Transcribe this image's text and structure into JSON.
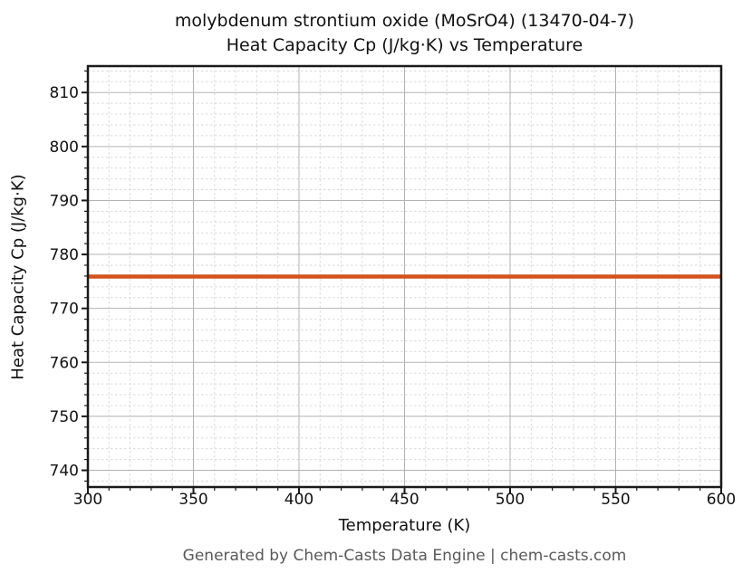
{
  "header": {
    "title_line1": "molybdenum strontium oxide (MoSrO4) (13470-04-7)",
    "title_line2": "Heat Capacity Cp (J/kg·K) vs Temperature"
  },
  "footer": {
    "credit": "Generated by Chem-Casts Data Engine | chem-casts.com"
  },
  "chart_data": {
    "type": "line",
    "title": "molybdenum strontium oxide (MoSrO4) (13470-04-7)\nHeat Capacity Cp (J/kg·K) vs Temperature",
    "xlabel": "Temperature (K)",
    "ylabel": "Heat Capacity Cp (J/kg·K)",
    "xlim": [
      300,
      600
    ],
    "ylim": [
      736.9,
      814.9
    ],
    "x_ticks": [
      300,
      350,
      400,
      450,
      500,
      550,
      600
    ],
    "y_ticks": [
      740,
      750,
      760,
      770,
      780,
      790,
      800,
      810
    ],
    "x_minor_step": 10,
    "y_minor_step": 2,
    "grid": true,
    "grid_major_on": true,
    "grid_minor_on": true,
    "legend": "none",
    "series": [
      {
        "name": "Heat Capacity Cp",
        "x": [
          300,
          350,
          400,
          450,
          500,
          550,
          600
        ],
        "y": [
          775.9,
          775.9,
          775.9,
          775.9,
          775.9,
          775.9,
          775.9
        ],
        "color": "#d3521e",
        "linewidth": 4.5
      }
    ]
  }
}
